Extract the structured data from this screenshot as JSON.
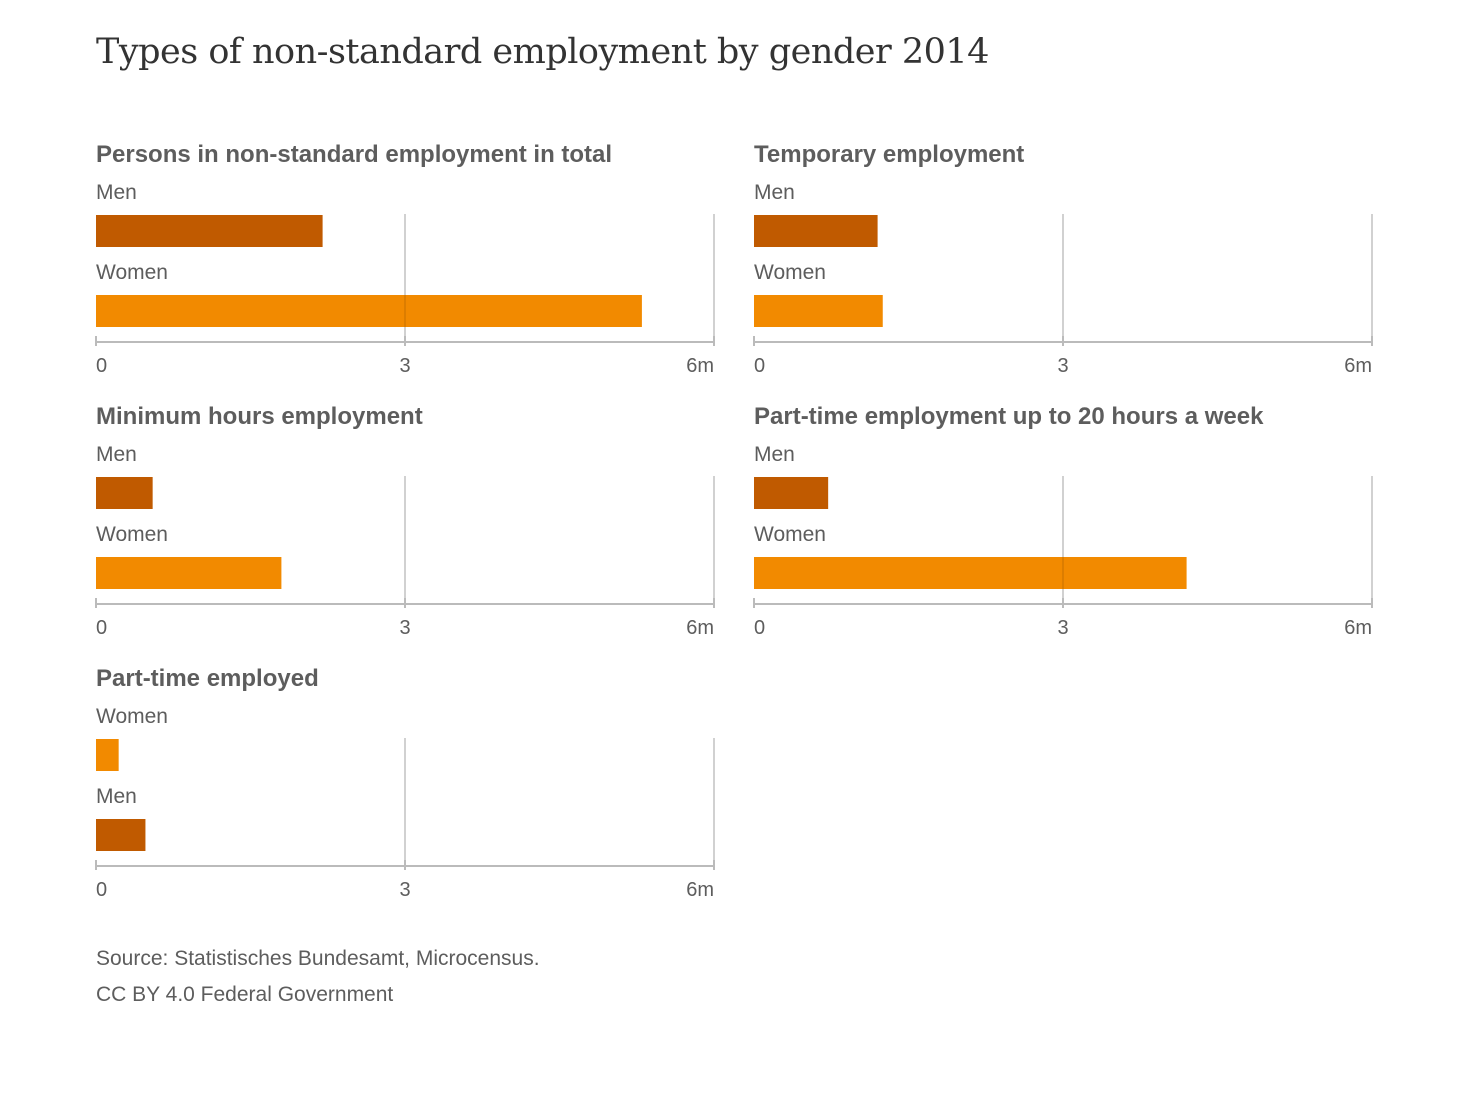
{
  "title": "Types of non-standard employment by gender 2014",
  "colors": {
    "men": "#c05a00",
    "women": "#f28a00",
    "grid": "#dddddd",
    "axis": "#bbbbbb"
  },
  "chart_data": [
    {
      "type": "bar",
      "title": "Persons in non-standard employment in total",
      "categories": [
        "Men",
        "Women"
      ],
      "values": [
        2.2,
        5.3
      ],
      "colors": [
        "#c05a00",
        "#f28a00"
      ],
      "xlim": [
        0,
        6
      ],
      "ticks": [
        0,
        3,
        6
      ],
      "tick_labels": [
        "0",
        "3",
        "6m"
      ],
      "grid": true
    },
    {
      "type": "bar",
      "title": "Temporary employment",
      "categories": [
        "Men",
        "Women"
      ],
      "values": [
        1.2,
        1.25
      ],
      "colors": [
        "#c05a00",
        "#f28a00"
      ],
      "xlim": [
        0,
        6
      ],
      "ticks": [
        0,
        3,
        6
      ],
      "tick_labels": [
        "0",
        "3",
        "6m"
      ],
      "grid": true
    },
    {
      "type": "bar",
      "title": "Minimum hours employment",
      "categories": [
        "Men",
        "Women"
      ],
      "values": [
        0.55,
        1.8
      ],
      "colors": [
        "#c05a00",
        "#f28a00"
      ],
      "xlim": [
        0,
        6
      ],
      "ticks": [
        0,
        3,
        6
      ],
      "tick_labels": [
        "0",
        "3",
        "6m"
      ],
      "grid": true
    },
    {
      "type": "bar",
      "title": "Part-time employment up to 20 hours a week",
      "categories": [
        "Men",
        "Women"
      ],
      "values": [
        0.72,
        4.2
      ],
      "colors": [
        "#c05a00",
        "#f28a00"
      ],
      "xlim": [
        0,
        6
      ],
      "ticks": [
        0,
        3,
        6
      ],
      "tick_labels": [
        "0",
        "3",
        "6m"
      ],
      "grid": true
    },
    {
      "type": "bar",
      "title": "Part-time employed",
      "categories": [
        "Women",
        "Men"
      ],
      "values": [
        0.22,
        0.48
      ],
      "colors": [
        "#f28a00",
        "#c05a00"
      ],
      "xlim": [
        0,
        6
      ],
      "ticks": [
        0,
        3,
        6
      ],
      "tick_labels": [
        "0",
        "3",
        "6m"
      ],
      "grid": true
    }
  ],
  "footer": {
    "source": "Source: Statistisches Bundesamt, Microcensus.",
    "license": "CC BY 4.0 Federal Government"
  }
}
